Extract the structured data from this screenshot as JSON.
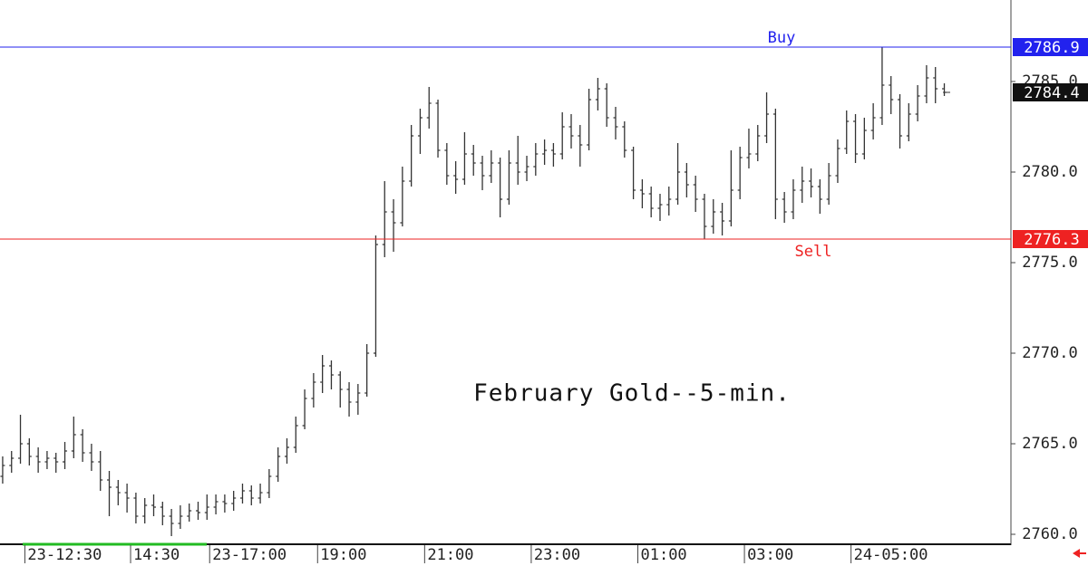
{
  "chart_data": {
    "type": "ohlc",
    "title": "February Gold--5-min.",
    "x": [
      0,
      2,
      4,
      6,
      8,
      10,
      12,
      14,
      16,
      18,
      20,
      22,
      24,
      26,
      28,
      30,
      32,
      34,
      36,
      38,
      40,
      42,
      44,
      46,
      48,
      50,
      52,
      54,
      56,
      58,
      60,
      62,
      64,
      66,
      68,
      70,
      72,
      74,
      76,
      78,
      80,
      82,
      84,
      86,
      88,
      90,
      92,
      94,
      96,
      98,
      100,
      102,
      104,
      106,
      108,
      110,
      112,
      114,
      116,
      118,
      120,
      122,
      124,
      126,
      128,
      130,
      132,
      134,
      136,
      138,
      140,
      142,
      144,
      146,
      148,
      150,
      152,
      154,
      156,
      158,
      160,
      162,
      164,
      166,
      168,
      170,
      172,
      174,
      176,
      178,
      180,
      182,
      184,
      186,
      188,
      190,
      192,
      194,
      196,
      198,
      200,
      202,
      204,
      206,
      208,
      210,
      212
    ],
    "open": [
      2763.2,
      2763.8,
      2764.2,
      2765.0,
      2764.3,
      2764.0,
      2764.2,
      2764.0,
      2764.6,
      2765.5,
      2764.5,
      2764.0,
      2763.0,
      2762.6,
      2762.3,
      2762.0,
      2761.0,
      2761.6,
      2761.5,
      2761.0,
      2760.6,
      2761.0,
      2761.3,
      2761.2,
      2761.5,
      2761.8,
      2761.7,
      2762.0,
      2762.4,
      2762.0,
      2762.3,
      2763.2,
      2764.3,
      2764.8,
      2766.0,
      2767.5,
      2768.4,
      2769.3,
      2768.8,
      2768.0,
      2767.3,
      2767.8,
      2770.0,
      2776.0,
      2777.8,
      2777.2,
      2779.5,
      2782.0,
      2783.0,
      2783.8,
      2781.2,
      2779.8,
      2779.6,
      2781.0,
      2780.5,
      2779.8,
      2780.5,
      2778.5,
      2780.5,
      2780.0,
      2780.3,
      2781.0,
      2781.2,
      2781.0,
      2782.5,
      2782.0,
      2781.5,
      2784.0,
      2784.6,
      2783.0,
      2782.5,
      2781.2,
      2779.0,
      2778.8,
      2778.0,
      2778.2,
      2778.5,
      2780.0,
      2779.3,
      2778.5,
      2777.0,
      2777.8,
      2777.3,
      2779.0,
      2780.8,
      2781.0,
      2782.0,
      2783.2,
      2778.5,
      2777.8,
      2779.0,
      2779.5,
      2779.2,
      2778.5,
      2779.8,
      2781.3,
      2782.8,
      2781.0,
      2782.3,
      2783.0,
      2784.8,
      2784.0,
      2782.0,
      2783.2,
      2784.2,
      2785.2,
      2784.6
    ],
    "high": [
      2764.3,
      2764.6,
      2766.6,
      2765.3,
      2764.8,
      2764.6,
      2764.5,
      2765.1,
      2766.5,
      2765.8,
      2765.0,
      2764.6,
      2763.5,
      2763.0,
      2762.8,
      2762.3,
      2762.0,
      2762.2,
      2761.8,
      2761.4,
      2761.6,
      2761.7,
      2761.8,
      2762.2,
      2762.2,
      2762.2,
      2762.4,
      2762.8,
      2762.7,
      2762.8,
      2763.6,
      2764.8,
      2765.3,
      2766.5,
      2768.0,
      2768.9,
      2769.9,
      2769.6,
      2769.0,
      2768.4,
      2768.3,
      2770.5,
      2776.5,
      2779.5,
      2778.5,
      2780.3,
      2782.6,
      2783.5,
      2784.7,
      2784.0,
      2781.6,
      2780.6,
      2782.2,
      2781.5,
      2780.9,
      2781.2,
      2780.8,
      2781.2,
      2782.0,
      2780.9,
      2781.6,
      2781.8,
      2781.6,
      2783.3,
      2783.2,
      2782.6,
      2784.6,
      2785.2,
      2784.9,
      2783.6,
      2782.8,
      2781.4,
      2779.6,
      2779.2,
      2778.8,
      2779.2,
      2781.6,
      2780.5,
      2779.8,
      2778.8,
      2778.5,
      2778.3,
      2781.2,
      2781.4,
      2782.4,
      2782.6,
      2784.4,
      2783.5,
      2778.9,
      2779.6,
      2780.3,
      2780.2,
      2779.6,
      2780.5,
      2781.8,
      2783.4,
      2783.2,
      2783.0,
      2783.8,
      2786.9,
      2785.3,
      2784.3,
      2783.8,
      2784.8,
      2785.9,
      2785.8,
      2784.9
    ],
    "low": [
      2762.8,
      2763.4,
      2763.9,
      2763.8,
      2763.4,
      2763.6,
      2763.4,
      2763.6,
      2764.2,
      2764.0,
      2763.5,
      2762.4,
      2761.0,
      2761.6,
      2761.2,
      2760.6,
      2760.6,
      2761.0,
      2760.5,
      2759.9,
      2760.3,
      2760.7,
      2760.8,
      2760.8,
      2761.1,
      2761.2,
      2761.3,
      2761.7,
      2761.6,
      2761.7,
      2762.0,
      2762.9,
      2763.9,
      2764.5,
      2765.8,
      2767.0,
      2767.8,
      2768.0,
      2767.0,
      2766.5,
      2766.6,
      2767.6,
      2769.8,
      2775.3,
      2775.6,
      2777.0,
      2779.2,
      2781.0,
      2782.4,
      2780.8,
      2779.3,
      2778.8,
      2779.3,
      2779.8,
      2779.0,
      2779.4,
      2777.5,
      2778.2,
      2779.3,
      2779.5,
      2779.8,
      2780.4,
      2780.3,
      2780.7,
      2781.3,
      2780.3,
      2781.2,
      2783.4,
      2782.5,
      2781.8,
      2780.8,
      2778.5,
      2778.0,
      2777.5,
      2777.3,
      2777.6,
      2778.2,
      2778.6,
      2777.8,
      2776.3,
      2776.6,
      2776.5,
      2777.0,
      2778.5,
      2780.2,
      2780.6,
      2781.6,
      2777.4,
      2777.2,
      2777.4,
      2778.3,
      2778.6,
      2777.7,
      2778.2,
      2779.4,
      2781.0,
      2780.5,
      2780.7,
      2781.8,
      2782.6,
      2783.2,
      2781.3,
      2781.7,
      2782.8,
      2783.8,
      2783.8,
      2784.2
    ],
    "close": [
      2763.8,
      2764.2,
      2765.0,
      2764.3,
      2764.0,
      2764.2,
      2764.0,
      2764.6,
      2765.5,
      2764.5,
      2764.0,
      2763.0,
      2762.6,
      2762.3,
      2762.0,
      2761.0,
      2761.6,
      2761.5,
      2761.0,
      2760.6,
      2761.0,
      2761.3,
      2761.2,
      2761.5,
      2761.8,
      2761.7,
      2762.0,
      2762.4,
      2762.0,
      2762.3,
      2763.2,
      2764.3,
      2764.8,
      2766.0,
      2767.5,
      2768.4,
      2769.3,
      2768.8,
      2768.0,
      2767.3,
      2767.8,
      2770.0,
      2776.0,
      2777.8,
      2777.2,
      2779.5,
      2782.0,
      2783.0,
      2783.8,
      2781.2,
      2779.8,
      2779.6,
      2781.0,
      2780.5,
      2779.8,
      2780.5,
      2778.5,
      2780.5,
      2780.0,
      2780.3,
      2781.0,
      2781.2,
      2781.0,
      2782.5,
      2782.0,
      2781.5,
      2784.0,
      2784.6,
      2783.0,
      2782.5,
      2781.2,
      2779.0,
      2778.8,
      2778.0,
      2778.2,
      2778.5,
      2780.0,
      2779.3,
      2778.5,
      2777.0,
      2777.8,
      2777.3,
      2779.0,
      2780.8,
      2781.0,
      2782.0,
      2783.2,
      2778.5,
      2777.8,
      2779.0,
      2779.5,
      2779.2,
      2778.5,
      2779.8,
      2781.3,
      2782.8,
      2781.0,
      2782.3,
      2783.0,
      2784.8,
      2784.0,
      2782.0,
      2783.2,
      2784.2,
      2785.2,
      2784.6,
      2784.4
    ],
    "color": "#333333",
    "xlim": [
      -0.6,
      227
    ],
    "xticks": [
      {
        "value": 5,
        "label": "23-12:30"
      },
      {
        "value": 28.8,
        "label": "14:30"
      },
      {
        "value": 46.6,
        "label": "23-17:00"
      },
      {
        "value": 70.9,
        "label": "19:00"
      },
      {
        "value": 95,
        "label": "21:00"
      },
      {
        "value": 119,
        "label": "23:00"
      },
      {
        "value": 143,
        "label": "01:00"
      },
      {
        "value": 167,
        "label": "03:00"
      },
      {
        "value": 191,
        "label": "24-05:00"
      }
    ],
    "ylim": [
      2759.5,
      2789.5
    ],
    "yticks": [
      {
        "value": 2760,
        "label": "2760.0"
      },
      {
        "value": 2765,
        "label": "2765.0"
      },
      {
        "value": 2770,
        "label": "2770.0"
      },
      {
        "value": 2775,
        "label": "2775.0"
      },
      {
        "value": 2780,
        "label": "2780.0"
      },
      {
        "value": 2785,
        "label": "2785.0"
      }
    ],
    "levels": [
      {
        "name": "Buy",
        "value": 2786.9,
        "color": "#2222ee"
      },
      {
        "name": "Sell",
        "value": 2776.3,
        "color": "#ee2222"
      }
    ],
    "last_price": 2784.4
  }
}
